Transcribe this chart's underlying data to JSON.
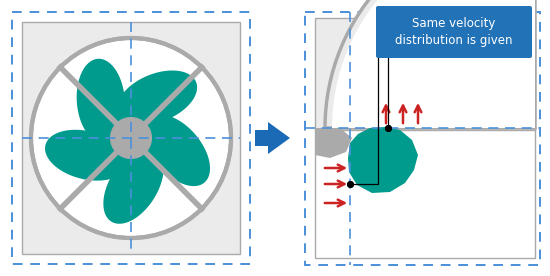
{
  "fig_width": 5.5,
  "fig_height": 2.76,
  "dpi": 100,
  "bg_color": "#ffffff",
  "teal_color": "#009B8D",
  "gray_color": "#888888",
  "light_gray": "#EBEBEB",
  "med_gray": "#AAAAAA",
  "blue_arrow_color": "#1B6AB5",
  "red_arrow_color": "#CC2222",
  "dashed_blue": "#4A90D9",
  "box_blue": "#2272B8",
  "text_color": "#ffffff",
  "annotation_text": "Same velocity\ndistribution is given"
}
